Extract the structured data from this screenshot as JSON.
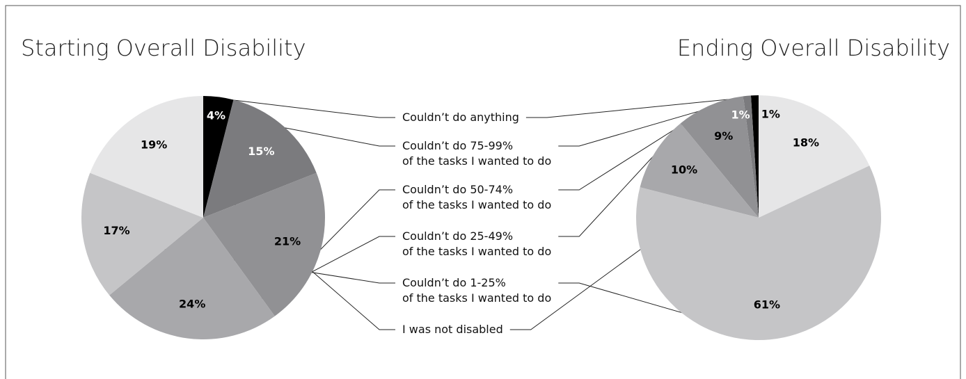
{
  "chart_data": {
    "type": "pie",
    "categories": [
      "Couldn’t do anything",
      "Couldn’t do 75-99%\nof the tasks I wanted to do",
      "Couldn’t do 50-74%\nof the tasks I wanted to do",
      "Couldn’t do 25-49%\nof the tasks I wanted to do",
      "Couldn’t do 1-25%\nof the tasks I wanted to do",
      "I was not disabled"
    ],
    "colors": [
      "#000000",
      "#7b7b7e",
      "#919194",
      "#a8a8ab",
      "#c5c5c7",
      "#e6e6e7"
    ],
    "label_colors": [
      "#ffffff",
      "#ffffff",
      "#000000",
      "#000000",
      "#000000",
      "#000000"
    ],
    "charts": [
      {
        "title": "Starting Overall Disability",
        "clockwise": true,
        "values": [
          4,
          15,
          21,
          24,
          17,
          19
        ],
        "value_labels": [
          "4%",
          "15%",
          "21%",
          "24%",
          "17%",
          "19%"
        ]
      },
      {
        "title": "Ending Overall Disability",
        "clockwise": false,
        "values": [
          1,
          1,
          9,
          10,
          61,
          18
        ],
        "value_labels": [
          "1%",
          "1%",
          "9%",
          "10%",
          "61%",
          "18%"
        ]
      }
    ]
  }
}
